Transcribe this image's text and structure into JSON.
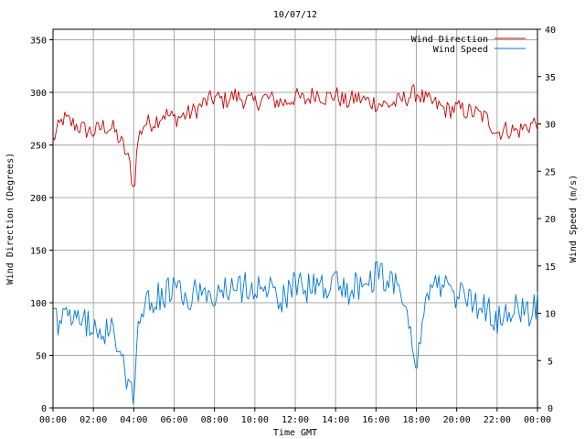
{
  "chart_data": {
    "type": "line",
    "title": "10/07/12",
    "xlabel": "Time GMT",
    "ylabel_left": "Wind Direction (Degrees)",
    "ylabel_right": "Wind Speed (m/s)",
    "x_range_hours": [
      0,
      24
    ],
    "ylim_left": [
      0,
      360
    ],
    "ylim_right": [
      0,
      40
    ],
    "grid": true,
    "legend_position": "top-right",
    "x_ticks": [
      "00:00",
      "02:00",
      "04:00",
      "06:00",
      "08:00",
      "10:00",
      "12:00",
      "14:00",
      "16:00",
      "18:00",
      "20:00",
      "22:00",
      "00:00"
    ],
    "y_ticks_left": [
      "0",
      "50",
      "100",
      "150",
      "200",
      "250",
      "300",
      "350"
    ],
    "y_ticks_right": [
      "0",
      "5",
      "10",
      "15",
      "20",
      "25",
      "30",
      "35",
      "40"
    ],
    "series": [
      {
        "name": "Wind Direction",
        "axis": "left",
        "color": "#cc0000",
        "x_hours": [
          0,
          0.5,
          1,
          1.5,
          2,
          2.5,
          3,
          3.5,
          3.8,
          4,
          4.2,
          4.5,
          5,
          5.5,
          6,
          6.5,
          7,
          7.5,
          8,
          8.5,
          9,
          9.5,
          10,
          10.5,
          11,
          11.5,
          12,
          12.5,
          13,
          13.5,
          14,
          14.5,
          15,
          15.5,
          16,
          16.5,
          17,
          17.5,
          18,
          18.5,
          19,
          19.5,
          20,
          20.5,
          21,
          21.5,
          22,
          22.5,
          23,
          23.5,
          24
        ],
        "values": [
          255,
          275,
          270,
          265,
          262,
          268,
          265,
          248,
          232,
          205,
          255,
          270,
          272,
          280,
          275,
          278,
          282,
          290,
          295,
          292,
          297,
          293,
          290,
          295,
          292,
          290,
          296,
          292,
          300,
          295,
          298,
          290,
          295,
          292,
          290,
          288,
          290,
          295,
          300,
          292,
          288,
          283,
          285,
          282,
          280,
          275,
          262,
          265,
          263,
          268,
          272
        ]
      },
      {
        "name": "Wind Speed",
        "axis": "right",
        "color": "#0077dd",
        "x_hours": [
          0,
          0.5,
          1,
          1.5,
          2,
          2.5,
          3,
          3.5,
          3.8,
          4,
          4.2,
          4.5,
          5,
          5.5,
          6,
          6.5,
          7,
          7.5,
          8,
          8.5,
          9,
          9.5,
          10,
          10.5,
          11,
          11.5,
          12,
          12.5,
          13,
          13.5,
          14,
          14.5,
          15,
          15.5,
          16,
          16.5,
          17,
          17.5,
          18,
          18.5,
          19,
          19.5,
          20,
          20.5,
          21,
          21.5,
          22,
          22.5,
          23,
          23.5,
          24
        ],
        "values": [
          9.5,
          9,
          9.5,
          9,
          8.5,
          8.2,
          8,
          5,
          2,
          1.5,
          8,
          11,
          11.5,
          12,
          12.5,
          11.5,
          12,
          12.5,
          11.5,
          12.5,
          12,
          13,
          12.5,
          13.5,
          12,
          11.5,
          13,
          12.5,
          13,
          12.5,
          13,
          12,
          13,
          12.5,
          14,
          13.5,
          13,
          12,
          3.5,
          12,
          12.5,
          13,
          12,
          11.5,
          11,
          10.5,
          9,
          10,
          10.5,
          10,
          11
        ]
      }
    ]
  }
}
